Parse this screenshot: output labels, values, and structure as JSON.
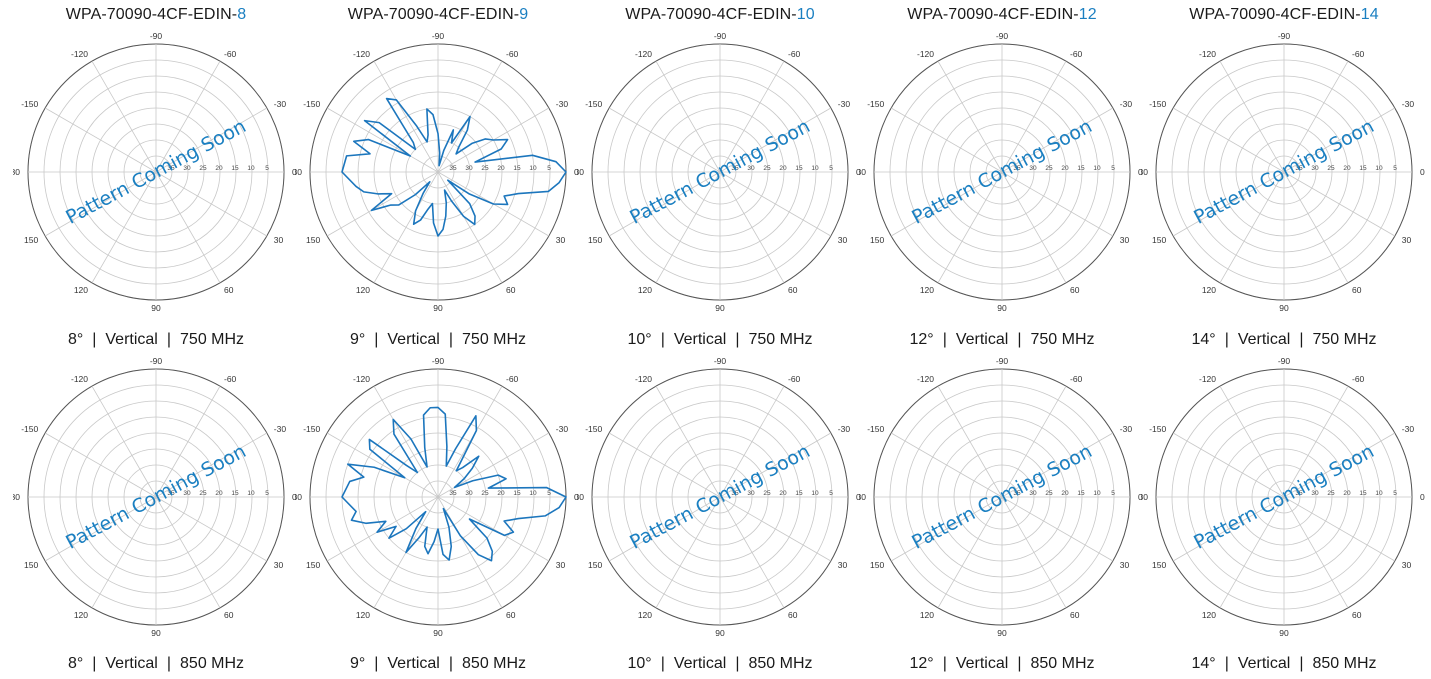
{
  "colors": {
    "accent": "#1a7fc1",
    "pattern": "#1c76bd",
    "grid": "#c8c8c8",
    "outer": "#555555",
    "text": "#1a1a1a"
  },
  "columns": [
    {
      "title_prefix": "WPA-70090-4CF-EDIN-",
      "title_suffix": "8"
    },
    {
      "title_prefix": "WPA-70090-4CF-EDIN-",
      "title_suffix": "9"
    },
    {
      "title_prefix": "WPA-70090-4CF-EDIN-",
      "title_suffix": "10"
    },
    {
      "title_prefix": "WPA-70090-4CF-EDIN-",
      "title_suffix": "12"
    },
    {
      "title_prefix": "WPA-70090-4CF-EDIN-",
      "title_suffix": "14"
    }
  ],
  "plots": [
    {
      "tilt": "8°",
      "pol": "Vertical",
      "freq": "750 MHz",
      "zero_label": "0",
      "overlay": "Pattern Coming Soon"
    },
    {
      "tilt": "9°",
      "pol": "Vertical",
      "freq": "750 MHz",
      "zero_label": "0",
      "overlay": ""
    },
    {
      "tilt": "10°",
      "pol": "Vertical",
      "freq": "750 MHz",
      "zero_label": "0",
      "overlay": "Pattern Coming Soon"
    },
    {
      "tilt": "12°",
      "pol": "Vertical",
      "freq": "750 MHz",
      "zero_label": "0",
      "overlay": "Pattern Coming Soon"
    },
    {
      "tilt": "14°",
      "pol": "Vertical",
      "freq": "750 MHz",
      "zero_label": "0",
      "overlay": "Pattern Coming Soon"
    },
    {
      "tilt": "8°",
      "pol": "Vertical",
      "freq": "850 MHz",
      "zero_label": "0",
      "overlay": "Pattern Coming Soon"
    },
    {
      "tilt": "9°",
      "pol": "Vertical",
      "freq": "850 MHz",
      "zero_label": "0",
      "overlay": ""
    },
    {
      "tilt": "10°",
      "pol": "Vertical",
      "freq": "850 MHz",
      "zero_label": "0",
      "overlay": "Pattern Coming Soon"
    },
    {
      "tilt": "12°",
      "pol": "Vertical",
      "freq": "850 MHz",
      "zero_label": "0",
      "overlay": "Pattern Coming Soon"
    },
    {
      "tilt": "14°",
      "pol": "Vertical",
      "freq": "850 MHz",
      "zero_label": "0",
      "overlay": "Pattern Coming Soon"
    }
  ],
  "caption_separator": "|",
  "chart_data": [
    {
      "type": "polar",
      "title": "WPA-70090-4CF-EDIN-9 · 9° | Vertical | 750 MHz",
      "angle_ticks": [
        "0",
        "30",
        "60",
        "90",
        "120",
        "150",
        "180",
        "-150",
        "-120",
        "-90",
        "-60",
        "-30"
      ],
      "radial_ticks": [
        "35",
        "30",
        "25",
        "20",
        "15",
        "10",
        "5"
      ],
      "radial_range_db": [
        -40,
        0
      ],
      "grid": true,
      "series": [
        {
          "angles_deg": [
            -180,
            -170,
            -165,
            -160,
            -155,
            -150,
            -145,
            -140,
            -135,
            -130,
            -125,
            -120,
            -115,
            -110,
            -105,
            -100,
            -95,
            -90,
            -85,
            -80,
            -75,
            -70,
            -65,
            -60,
            -55,
            -50,
            -45,
            -40,
            -35,
            -30,
            -25,
            -20,
            -15,
            -10,
            -5,
            0,
            5,
            10,
            15,
            20,
            25,
            30,
            35,
            40,
            45,
            50,
            55,
            60,
            65,
            70,
            75,
            80,
            85,
            90,
            95,
            100,
            105,
            110,
            115,
            120,
            125,
            130,
            135,
            140,
            145,
            150,
            155,
            160,
            165,
            170,
            180
          ],
          "values_db": [
            -10,
            -11,
            -18,
            -12,
            -16,
            -30,
            -12,
            -16,
            -30,
            -28,
            -12,
            -14,
            -24,
            -30,
            -28,
            -20,
            -22,
            -28,
            -34,
            -38,
            -33,
            -26,
            -30,
            -20,
            -24,
            -30,
            -32,
            -26,
            -22,
            -20,
            -16,
            -19,
            -28,
            -10,
            -3,
            0,
            -2,
            -5,
            -14,
            -18,
            -16,
            -20,
            -28,
            -36,
            -26,
            -22,
            -20,
            -24,
            -30,
            -34,
            -30,
            -26,
            -22,
            -20,
            -24,
            -30,
            -28,
            -24,
            -22,
            -26,
            -32,
            -36,
            -30,
            -24,
            -22,
            -16,
            -24,
            -20,
            -16,
            -14,
            -10
          ]
        }
      ]
    },
    {
      "type": "polar",
      "title": "WPA-70090-4CF-EDIN-9 · 9° | Vertical | 850 MHz",
      "angle_ticks": [
        "0",
        "30",
        "60",
        "90",
        "120",
        "150",
        "180",
        "-150",
        "-120",
        "-90",
        "-60",
        "-30"
      ],
      "radial_ticks": [
        "35",
        "30",
        "25",
        "20",
        "15",
        "10",
        "5"
      ],
      "radial_range_db": [
        -40,
        0
      ],
      "grid": true,
      "series": [
        {
          "angles_deg": [
            -180,
            -170,
            -165,
            -160,
            -155,
            -150,
            -145,
            -140,
            -135,
            -130,
            -125,
            -120,
            -115,
            -110,
            -105,
            -100,
            -95,
            -90,
            -85,
            -80,
            -75,
            -70,
            -65,
            -60,
            -55,
            -50,
            -45,
            -40,
            -35,
            -30,
            -25,
            -20,
            -15,
            -10,
            -5,
            0,
            5,
            10,
            15,
            20,
            25,
            30,
            35,
            40,
            45,
            50,
            55,
            60,
            65,
            70,
            75,
            80,
            85,
            90,
            95,
            100,
            105,
            110,
            115,
            120,
            125,
            130,
            135,
            140,
            145,
            150,
            155,
            160,
            165,
            170,
            180
          ],
          "values_db": [
            -10,
            -12,
            -16,
            -10,
            -18,
            -28,
            -14,
            -12,
            -26,
            -30,
            -16,
            -12,
            -20,
            -30,
            -24,
            -14,
            -12,
            -12,
            -14,
            -24,
            -30,
            -24,
            -12,
            -16,
            -30,
            -28,
            -22,
            -26,
            -30,
            -34,
            -28,
            -20,
            -18,
            -24,
            -6,
            0,
            -2,
            -6,
            -14,
            -18,
            -14,
            -16,
            -28,
            -20,
            -16,
            -14,
            -18,
            -26,
            -36,
            -30,
            -24,
            -20,
            -22,
            -30,
            -26,
            -22,
            -24,
            -30,
            -26,
            -20,
            -28,
            -34,
            -26,
            -20,
            -24,
            -18,
            -22,
            -16,
            -12,
            -14,
            -10
          ]
        }
      ]
    }
  ]
}
